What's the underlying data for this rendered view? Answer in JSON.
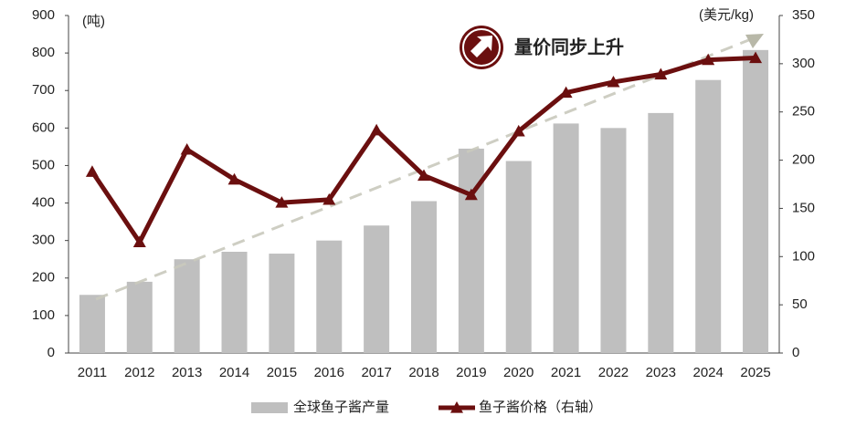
{
  "chart_data": {
    "type": "combo",
    "annotation": "量价同步上升",
    "y_label": "(吨)",
    "y2_label": "(美元/kg)",
    "categories": [
      "2011",
      "2012",
      "2013",
      "2014",
      "2015",
      "2016",
      "2017",
      "2018",
      "2019",
      "2020",
      "2021",
      "2022",
      "2023",
      "2024",
      "2025"
    ],
    "series": [
      {
        "name": "全球鱼子酱产量",
        "type": "bar",
        "color": "#bfbfbf",
        "axis": "y",
        "values": [
          155,
          190,
          250,
          270,
          265,
          300,
          340,
          405,
          545,
          512,
          612,
          600,
          640,
          728,
          808
        ]
      },
      {
        "name": "鱼子酱价格（右轴）",
        "type": "line",
        "color": "#6b0f0f",
        "axis": "y2",
        "values": [
          188,
          115,
          211,
          180,
          156,
          159,
          231,
          184,
          164,
          230,
          270,
          281,
          289,
          304,
          306
        ]
      }
    ],
    "ylim": [
      0,
      900
    ],
    "yticks": [
      0,
      100,
      200,
      300,
      400,
      500,
      600,
      700,
      800,
      900
    ],
    "y2lim": [
      0,
      350
    ],
    "y2ticks": [
      0,
      50,
      100,
      150,
      200,
      250,
      300,
      350
    ],
    "legend": "bottom"
  }
}
